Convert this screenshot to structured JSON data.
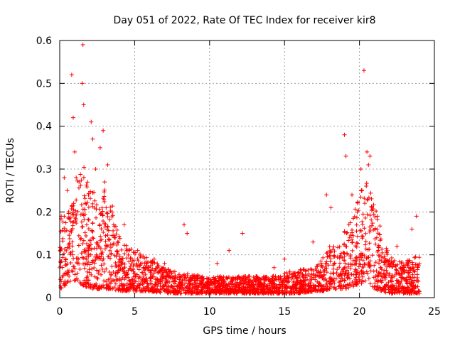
{
  "chart_data": {
    "type": "scatter",
    "title": "Day 051 of 2022, Rate Of TEC Index for receiver kir8",
    "xlabel": "GPS time / hours",
    "ylabel": "ROTI / TECUs",
    "xlim": [
      0,
      25
    ],
    "ylim": [
      0,
      0.6
    ],
    "x_ticks": [
      0,
      5,
      10,
      15,
      20,
      25
    ],
    "x_tick_labels": [
      "0",
      "5",
      "10",
      "15",
      "20",
      "25"
    ],
    "y_ticks": [
      0,
      0.1,
      0.2,
      0.3,
      0.4,
      0.5,
      0.6
    ],
    "y_tick_labels": [
      "0",
      "0.1",
      "0.2",
      "0.3",
      "0.4",
      "0.5",
      "0.6"
    ],
    "grid": true,
    "marker": "+",
    "marker_color": "#ff0000",
    "series": [
      {
        "name": "ROTI",
        "x": [
          0.1,
          0.3,
          0.5,
          0.8,
          0.9,
          1.0,
          1.1,
          1.5,
          1.55,
          1.6,
          1.7,
          1.8,
          2.1,
          2.2,
          2.4,
          2.7,
          2.9,
          3.0,
          3.2,
          3.5,
          3.6,
          4.3,
          4.5,
          5.2,
          6.3,
          7.0,
          8.3,
          8.5,
          10.5,
          11.3,
          12.2,
          14.3,
          15.0,
          16.9,
          17.8,
          18.1,
          19.0,
          19.1,
          19.5,
          20.1,
          20.3,
          20.5,
          20.6,
          20.7,
          21.2,
          22.5,
          23.5,
          23.8
        ],
        "y": [
          0.19,
          0.28,
          0.25,
          0.52,
          0.42,
          0.34,
          0.28,
          0.5,
          0.59,
          0.45,
          0.22,
          0.17,
          0.41,
          0.37,
          0.3,
          0.35,
          0.39,
          0.27,
          0.31,
          0.2,
          0.17,
          0.17,
          0.11,
          0.11,
          0.09,
          0.08,
          0.17,
          0.15,
          0.08,
          0.11,
          0.15,
          0.07,
          0.09,
          0.13,
          0.24,
          0.21,
          0.38,
          0.33,
          0.24,
          0.3,
          0.53,
          0.34,
          0.31,
          0.33,
          0.19,
          0.12,
          0.16,
          0.19
        ]
      }
    ],
    "density_profile": {
      "x": [
        0,
        0.5,
        1.0,
        1.5,
        2.0,
        2.5,
        3.0,
        3.5,
        4.0,
        4.5,
        5.0,
        6.0,
        7.0,
        8.0,
        9.0,
        10.0,
        11.0,
        12.0,
        13.0,
        14.0,
        15.0,
        16.0,
        17.0,
        17.5,
        18.0,
        18.5,
        19.0,
        19.5,
        20.0,
        20.5,
        21.0,
        21.5,
        22.0,
        22.5,
        23.0,
        23.5,
        24.0
      ],
      "upper": [
        0.19,
        0.22,
        0.25,
        0.33,
        0.3,
        0.22,
        0.26,
        0.22,
        0.14,
        0.12,
        0.11,
        0.09,
        0.07,
        0.06,
        0.055,
        0.05,
        0.05,
        0.05,
        0.05,
        0.05,
        0.06,
        0.065,
        0.07,
        0.09,
        0.12,
        0.12,
        0.16,
        0.18,
        0.25,
        0.27,
        0.22,
        0.15,
        0.1,
        0.09,
        0.08,
        0.1,
        0.1
      ],
      "lower": [
        0.02,
        0.03,
        0.04,
        0.03,
        0.02,
        0.02,
        0.02,
        0.02,
        0.015,
        0.015,
        0.015,
        0.015,
        0.01,
        0.01,
        0.01,
        0.01,
        0.01,
        0.01,
        0.01,
        0.01,
        0.01,
        0.01,
        0.015,
        0.015,
        0.02,
        0.02,
        0.02,
        0.025,
        0.03,
        0.04,
        0.02,
        0.015,
        0.01,
        0.01,
        0.01,
        0.01,
        0.01
      ]
    }
  }
}
